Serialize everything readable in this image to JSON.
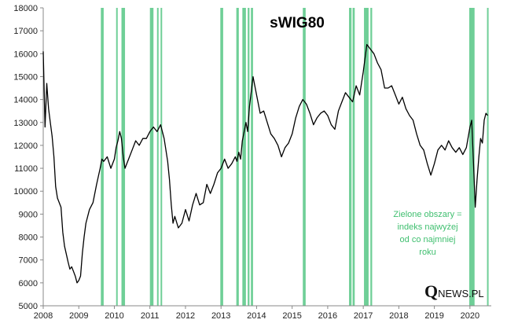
{
  "chart_data": {
    "type": "line",
    "title": "sWIG80",
    "xlabel": "",
    "ylabel": "",
    "xlim": [
      2008.0,
      2020.6
    ],
    "ylim": [
      5000,
      18000
    ],
    "y_ticks": [
      5000,
      6000,
      7000,
      8000,
      9000,
      10000,
      11000,
      12000,
      13000,
      14000,
      15000,
      16000,
      17000,
      18000
    ],
    "x_ticks": [
      2008,
      2009,
      2010,
      2011,
      2012,
      2013,
      2014,
      2015,
      2016,
      2017,
      2018,
      2019,
      2020
    ],
    "x_tick_labels": [
      "2008",
      "2009",
      "2010",
      "2011",
      "2012",
      "2013",
      "2014",
      "2015",
      "2016",
      "2017",
      "2018",
      "2019",
      "2020"
    ],
    "grid": false,
    "series": [
      {
        "name": "sWIG80",
        "color": "#000000",
        "x": [
          2008.0,
          2008.05,
          2008.1,
          2008.15,
          2008.2,
          2008.25,
          2008.3,
          2008.35,
          2008.4,
          2008.5,
          2008.55,
          2008.6,
          2008.7,
          2008.75,
          2008.8,
          2008.85,
          2008.9,
          2008.95,
          2009.0,
          2009.05,
          2009.1,
          2009.15,
          2009.2,
          2009.3,
          2009.4,
          2009.5,
          2009.6,
          2009.65,
          2009.7,
          2009.8,
          2009.9,
          2010.0,
          2010.05,
          2010.1,
          2010.15,
          2010.2,
          2010.25,
          2010.3,
          2010.4,
          2010.5,
          2010.6,
          2010.7,
          2010.8,
          2010.9,
          2011.0,
          2011.1,
          2011.2,
          2011.3,
          2011.4,
          2011.5,
          2011.55,
          2011.6,
          2011.65,
          2011.7,
          2011.8,
          2011.9,
          2012.0,
          2012.1,
          2012.2,
          2012.3,
          2012.4,
          2012.5,
          2012.6,
          2012.7,
          2012.8,
          2012.9,
          2013.0,
          2013.1,
          2013.2,
          2013.3,
          2013.4,
          2013.45,
          2013.5,
          2013.55,
          2013.6,
          2013.7,
          2013.75,
          2013.8,
          2013.9,
          2014.0,
          2014.1,
          2014.2,
          2014.3,
          2014.4,
          2014.5,
          2014.6,
          2014.7,
          2014.8,
          2014.9,
          2015.0,
          2015.1,
          2015.2,
          2015.3,
          2015.4,
          2015.5,
          2015.6,
          2015.7,
          2015.8,
          2015.9,
          2016.0,
          2016.1,
          2016.2,
          2016.3,
          2016.4,
          2016.5,
          2016.6,
          2016.7,
          2016.8,
          2016.9,
          2017.0,
          2017.1,
          2017.2,
          2017.3,
          2017.4,
          2017.5,
          2017.6,
          2017.7,
          2017.8,
          2017.9,
          2018.0,
          2018.1,
          2018.2,
          2018.3,
          2018.4,
          2018.5,
          2018.6,
          2018.7,
          2018.8,
          2018.9,
          2019.0,
          2019.1,
          2019.2,
          2019.3,
          2019.4,
          2019.5,
          2019.6,
          2019.7,
          2019.8,
          2019.9,
          2020.0,
          2020.05,
          2020.1,
          2020.15,
          2020.2,
          2020.25,
          2020.3,
          2020.35,
          2020.4,
          2020.45,
          2020.5
        ],
        "values": [
          16100,
          12800,
          14700,
          13600,
          13000,
          12400,
          11500,
          10200,
          9700,
          9300,
          8200,
          7600,
          6900,
          6600,
          6700,
          6500,
          6300,
          6000,
          6100,
          6300,
          7300,
          8000,
          8600,
          9200,
          9500,
          10300,
          11000,
          11400,
          11300,
          11500,
          11000,
          11400,
          11900,
          12200,
          12600,
          12300,
          11500,
          11000,
          11400,
          11800,
          12200,
          12000,
          12300,
          12300,
          12600,
          12800,
          12600,
          12900,
          12300,
          11300,
          10500,
          9400,
          8600,
          8900,
          8400,
          8600,
          9200,
          8700,
          9400,
          9900,
          9400,
          9500,
          10300,
          9900,
          10300,
          10800,
          11000,
          11400,
          11000,
          11200,
          11500,
          11300,
          11700,
          11400,
          12200,
          13000,
          12600,
          13700,
          15000,
          14200,
          13400,
          13500,
          13000,
          12500,
          12300,
          12000,
          11500,
          11900,
          12100,
          12500,
          13200,
          13700,
          14000,
          13800,
          13400,
          12900,
          13200,
          13400,
          13500,
          13300,
          12900,
          12700,
          13500,
          13900,
          14300,
          14100,
          13900,
          14600,
          14200,
          15200,
          16400,
          16200,
          16000,
          15600,
          15300,
          14500,
          14500,
          14600,
          14200,
          13800,
          14100,
          13600,
          13300,
          13100,
          12500,
          12000,
          11800,
          11200,
          10700,
          11200,
          11800,
          12000,
          11800,
          12200,
          11900,
          11700,
          11900,
          11600,
          11900,
          12800,
          13100,
          11200,
          9300,
          10500,
          11500,
          12300,
          12100,
          13100,
          13400,
          13300
        ]
      }
    ],
    "highlight_periods": [
      [
        2009.62,
        2009.7
      ],
      [
        2010.05,
        2010.08
      ],
      [
        2010.2,
        2010.3
      ],
      [
        2011.0,
        2011.1
      ],
      [
        2011.2,
        2011.23
      ],
      [
        2011.3,
        2011.33
      ],
      [
        2012.98,
        2013.06
      ],
      [
        2013.43,
        2013.5
      ],
      [
        2013.6,
        2013.7
      ],
      [
        2013.75,
        2013.8
      ],
      [
        2013.84,
        2013.9
      ],
      [
        2015.3,
        2015.38
      ],
      [
        2016.6,
        2016.67
      ],
      [
        2016.7,
        2016.76
      ],
      [
        2017.02,
        2017.15
      ],
      [
        2017.2,
        2017.25
      ],
      [
        2019.98,
        2020.13
      ],
      [
        2020.48,
        2020.5
      ]
    ],
    "highlight_color": "#6fcf97",
    "annotation": [
      "Zielone obszary =",
      "indeks najwyżej",
      "od co najmniej",
      "roku"
    ],
    "annotation_color": "#3fbf6f",
    "logo": "QNEWS.PL"
  }
}
